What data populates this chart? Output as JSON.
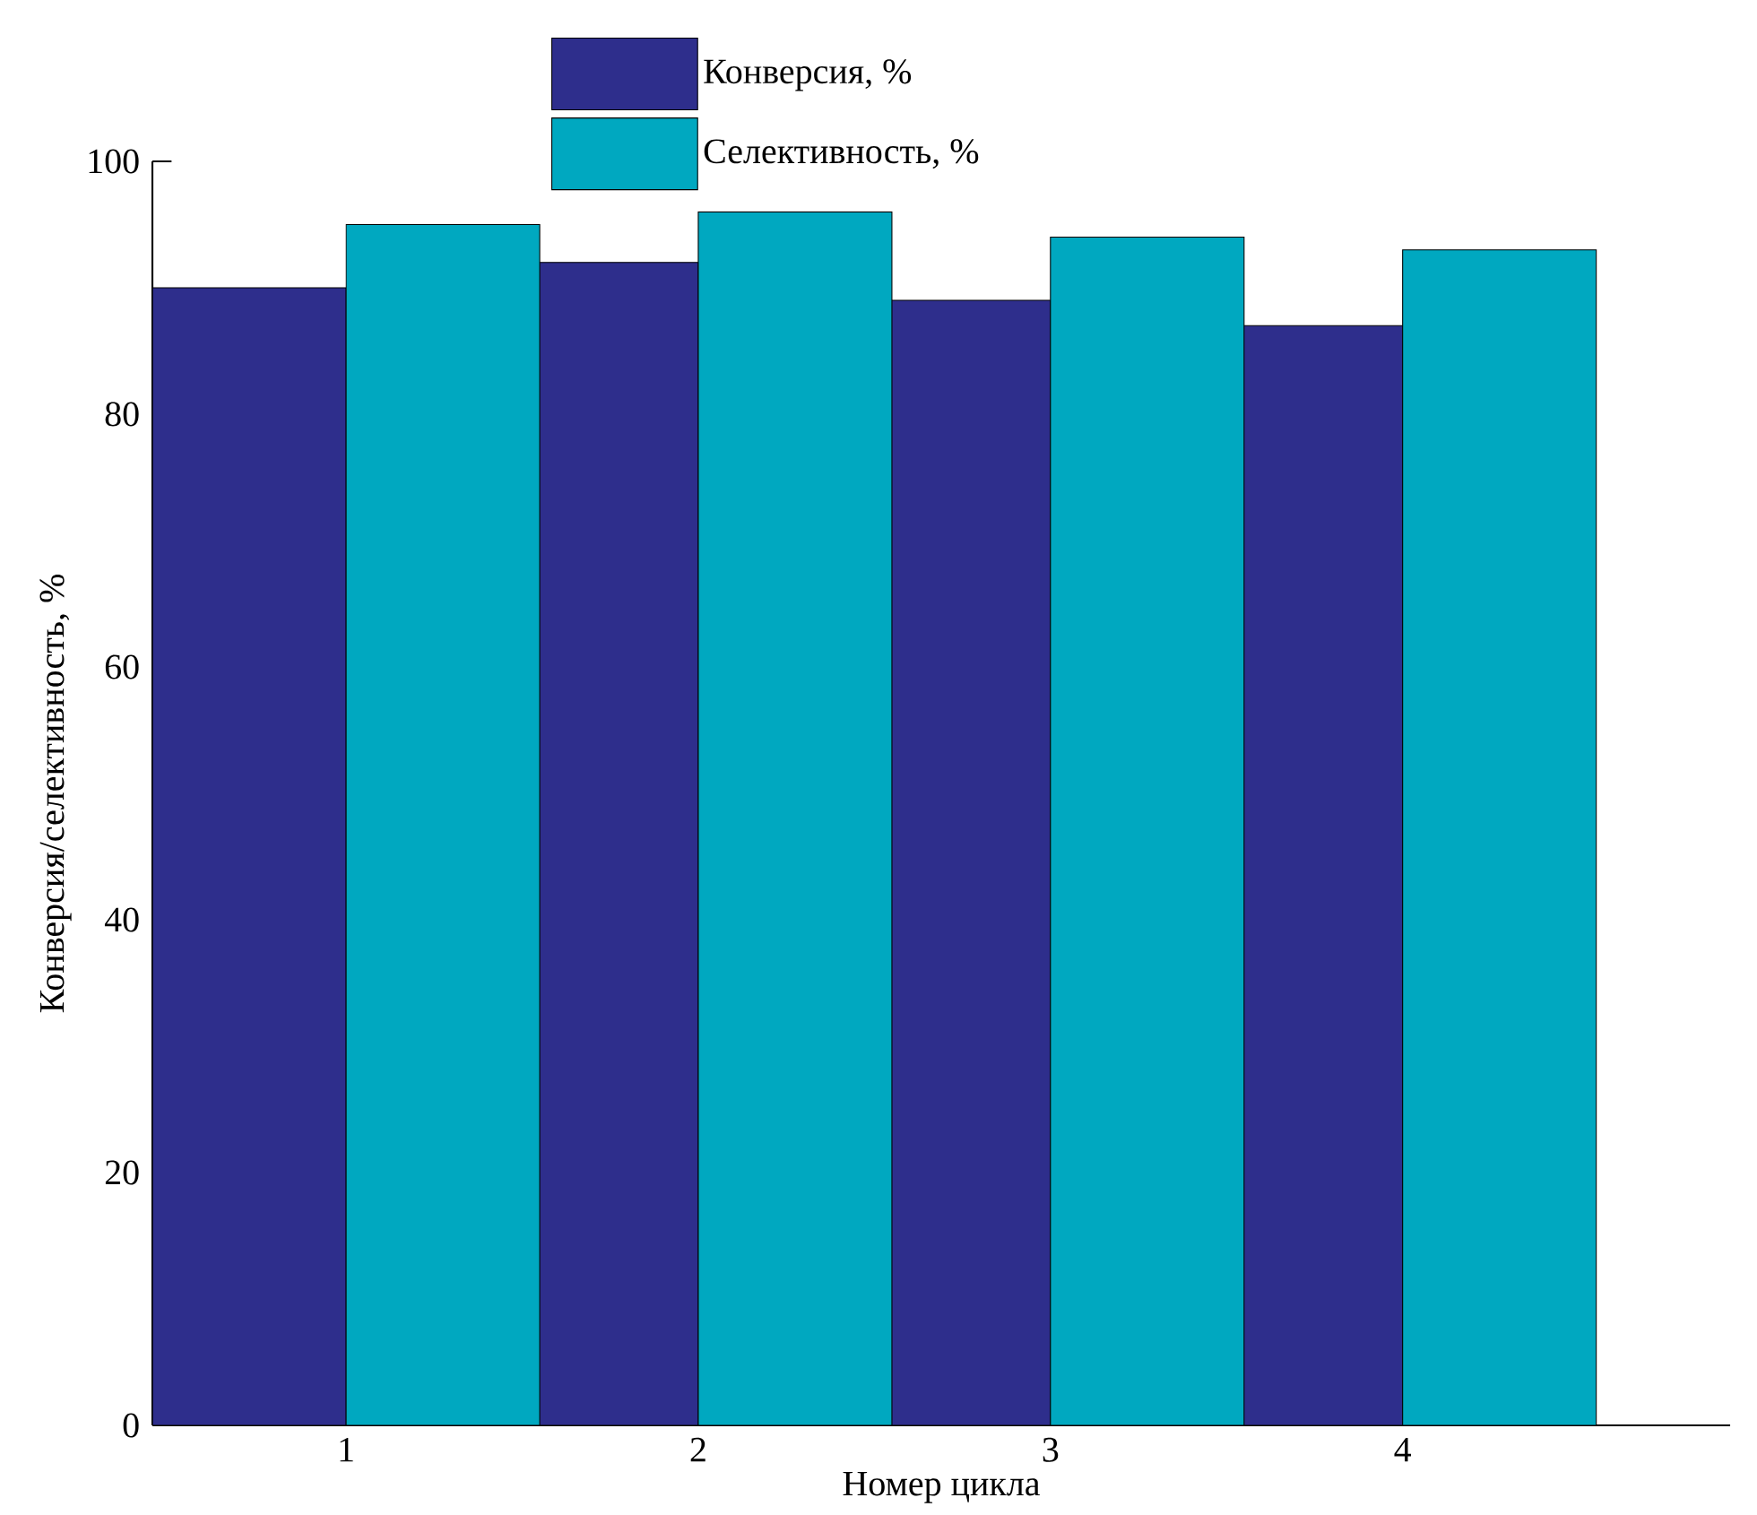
{
  "chart_data": {
    "type": "bar",
    "xlabel": "Номер цикла",
    "ylabel": "Конверсия/селективность, %",
    "categories": [
      "1",
      "2",
      "3",
      "4"
    ],
    "series": [
      {
        "name": "Конверсия, %",
        "color": "#2e2e8c",
        "values": [
          90,
          92,
          89,
          87
        ]
      },
      {
        "name": "Селективность, %",
        "color": "#00a8c0",
        "values": [
          95,
          96,
          94,
          93
        ]
      }
    ],
    "ylim": [
      0,
      100
    ],
    "yticks": [
      0,
      20,
      40,
      60,
      80,
      100
    ],
    "legend": "top"
  }
}
